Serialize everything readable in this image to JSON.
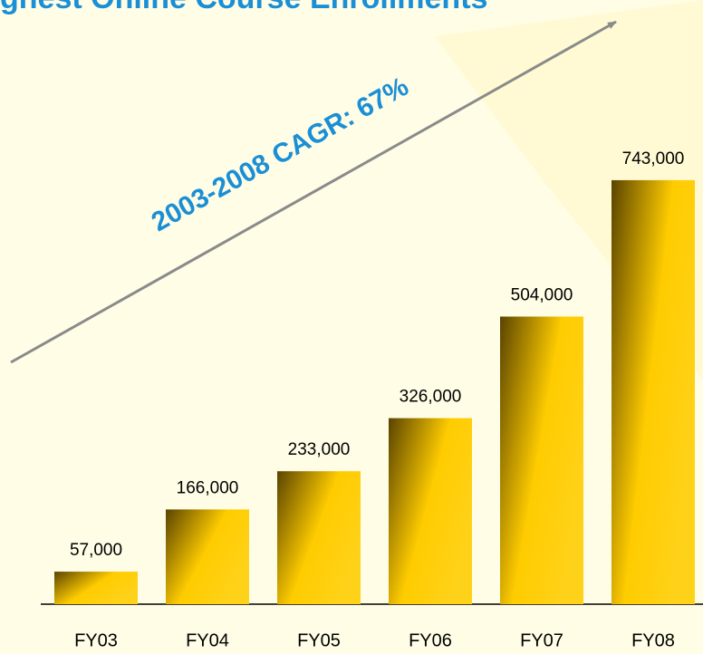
{
  "chart_data": {
    "type": "bar",
    "title": "ghest Online Course Enrollments",
    "annotation": "2003-2008 CAGR: 67%",
    "categories": [
      "FY03",
      "FY04",
      "FY05",
      "FY06",
      "FY07",
      "FY08"
    ],
    "values": [
      57000,
      166000,
      233000,
      326000,
      504000,
      743000
    ],
    "value_labels": [
      "57,000",
      "166,000",
      "233,000",
      "326,000",
      "504,000",
      "743,000"
    ],
    "color": "#ffcc00",
    "ylim": [
      0,
      800000
    ]
  }
}
